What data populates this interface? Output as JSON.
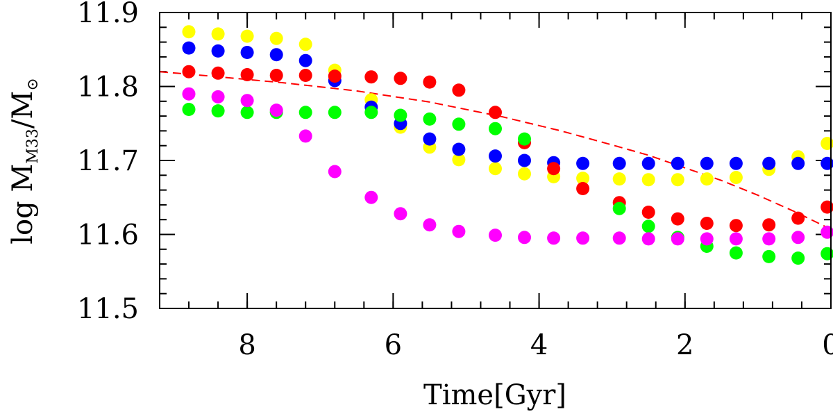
{
  "chart_data": {
    "type": "scatter",
    "title": "",
    "xlabel": "Time[Gyr]",
    "ylabel_main": "log M",
    "ylabel_sub": "M33",
    "ylabel_tail": "/M",
    "ylabel_sun": "⊙",
    "xlim": [
      9.2,
      0
    ],
    "ylim": [
      11.5,
      11.9
    ],
    "x_ticks": [
      {
        "value": 8,
        "label": "8"
      },
      {
        "value": 6,
        "label": "6"
      },
      {
        "value": 4,
        "label": "4"
      },
      {
        "value": 2,
        "label": "2"
      },
      {
        "value": 0,
        "label": "0"
      }
    ],
    "y_ticks": [
      {
        "value": 11.5,
        "label": "11.5"
      },
      {
        "value": 11.6,
        "label": "11.6"
      },
      {
        "value": 11.7,
        "label": "11.7"
      },
      {
        "value": 11.8,
        "label": "11.8"
      },
      {
        "value": 11.9,
        "label": "11.9"
      }
    ],
    "x_minor_step": 0.4,
    "y_minor_step": 0.02,
    "x": [
      8.8,
      8.4,
      8.0,
      7.6,
      7.2,
      6.8,
      6.3,
      5.9,
      5.5,
      5.1,
      4.6,
      4.2,
      3.8,
      3.4,
      2.9,
      2.5,
      2.1,
      1.7,
      1.3,
      0.85,
      0.45,
      0.05
    ],
    "series": [
      {
        "name": "yellow",
        "color": "#ffff00",
        "values": [
          11.874,
          11.871,
          11.868,
          11.865,
          11.857,
          11.822,
          11.782,
          11.745,
          11.718,
          11.701,
          11.689,
          11.682,
          11.678,
          11.676,
          11.675,
          11.674,
          11.674,
          11.675,
          11.677,
          11.688,
          11.705,
          11.723
        ]
      },
      {
        "name": "blue",
        "color": "#0000ff",
        "values": [
          11.852,
          11.848,
          11.846,
          11.843,
          11.835,
          11.808,
          11.772,
          11.75,
          11.729,
          11.715,
          11.706,
          11.7,
          11.697,
          11.696,
          11.696,
          11.696,
          11.696,
          11.696,
          11.696,
          11.696,
          11.696,
          11.696
        ]
      },
      {
        "name": "red",
        "color": "#ff0000",
        "values": [
          11.82,
          11.818,
          11.816,
          11.815,
          11.815,
          11.814,
          11.813,
          11.811,
          11.806,
          11.795,
          11.765,
          11.724,
          11.689,
          11.662,
          11.643,
          11.63,
          11.621,
          11.615,
          11.612,
          11.613,
          11.622,
          11.637
        ]
      },
      {
        "name": "green",
        "color": "#00ff00",
        "values": [
          11.769,
          11.767,
          11.765,
          11.765,
          11.765,
          11.765,
          11.765,
          11.761,
          11.756,
          11.749,
          11.743,
          11.729,
          null,
          null,
          11.635,
          11.611,
          11.596,
          11.584,
          11.575,
          11.57,
          11.568,
          11.574
        ]
      },
      {
        "name": "magenta",
        "color": "#ff00ff",
        "values": [
          11.79,
          11.786,
          11.781,
          11.768,
          11.733,
          11.685,
          11.65,
          11.628,
          11.613,
          11.604,
          11.599,
          11.596,
          11.595,
          11.595,
          11.595,
          11.594,
          11.594,
          11.594,
          11.594,
          11.594,
          11.596,
          11.603
        ]
      }
    ],
    "dashed_line": {
      "name": "model",
      "color": "#ff0000",
      "x": [
        9.2,
        8.5,
        7.5,
        6.5,
        5.5,
        4.5,
        3.7,
        3.0,
        2.5,
        2.0,
        1.5,
        1.0,
        0.5,
        0.0
      ],
      "y": [
        11.82,
        11.814,
        11.805,
        11.794,
        11.779,
        11.759,
        11.74,
        11.721,
        11.707,
        11.69,
        11.673,
        11.653,
        11.631,
        11.607
      ]
    }
  }
}
